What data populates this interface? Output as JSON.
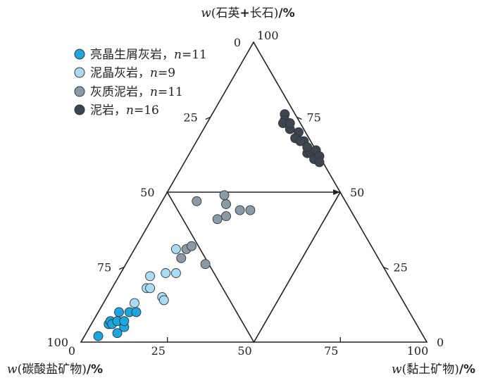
{
  "chart_data": {
    "type": "scatter",
    "plot_kind": "ternary",
    "axes": {
      "top_title": {
        "var": "w",
        "text": "(石英",
        "plus": "+",
        "text2": "长石)",
        "unit": "/%"
      },
      "left_title": {
        "var": "w",
        "text": "(碳酸盐矿物)",
        "unit": "/%"
      },
      "right_title": {
        "var": "w",
        "text": "(黏土矿物)",
        "unit": "/%"
      },
      "bottom_ticks": [
        "0",
        "25",
        "50",
        "75",
        "100"
      ],
      "left_ticks": [
        "0",
        "25",
        "50",
        "75",
        "100"
      ],
      "right_ticks": [
        "100",
        "75",
        "50",
        "25",
        "0"
      ]
    },
    "legend_position": "top-left",
    "series": [
      {
        "name": "亮晶生屑灰岩",
        "n_label": "n",
        "n_value": "=11",
        "color": "#1aa7e0",
        "points": [
          {
            "carbonate": 94,
            "qf": 2,
            "clay": 4
          },
          {
            "carbonate": 89,
            "qf": 6,
            "clay": 5
          },
          {
            "carbonate": 88,
            "qf": 7,
            "clay": 5
          },
          {
            "carbonate": 88,
            "qf": 6,
            "clay": 6
          },
          {
            "carbonate": 88,
            "qf": 3,
            "clay": 9
          },
          {
            "carbonate": 86,
            "qf": 7,
            "clay": 7
          },
          {
            "carbonate": 85,
            "qf": 5,
            "clay": 10
          },
          {
            "carbonate": 84,
            "qf": 10,
            "clay": 6
          },
          {
            "carbonate": 81,
            "qf": 10,
            "clay": 9
          },
          {
            "carbonate": 79,
            "qf": 10,
            "clay": 11
          },
          {
            "carbonate": 84,
            "qf": 7,
            "clay": 9
          }
        ]
      },
      {
        "name": "泥晶灰岩",
        "n_label": "n",
        "n_value": "=9",
        "color": "#a8dcf4",
        "points": [
          {
            "carbonate": 78,
            "qf": 13,
            "clay": 9
          },
          {
            "carbonate": 72,
            "qf": 18,
            "clay": 10
          },
          {
            "carbonate": 71,
            "qf": 18,
            "clay": 11
          },
          {
            "carbonate": 69,
            "qf": 22,
            "clay": 9
          },
          {
            "carbonate": 69,
            "qf": 15,
            "clay": 16
          },
          {
            "carbonate": 69,
            "qf": 14,
            "clay": 17
          },
          {
            "carbonate": 64,
            "qf": 23,
            "clay": 13
          },
          {
            "carbonate": 61,
            "qf": 23,
            "clay": 16
          },
          {
            "carbonate": 57,
            "qf": 31,
            "clay": 12
          }
        ]
      },
      {
        "name": "灰质泥岩",
        "n_label": "n",
        "n_value": "=11",
        "color": "#8b9ba6",
        "points": [
          {
            "carbonate": 57,
            "qf": 28,
            "clay": 15
          },
          {
            "carbonate": 54,
            "qf": 31,
            "clay": 15
          },
          {
            "carbonate": 52,
            "qf": 32,
            "clay": 16
          },
          {
            "carbonate": 51,
            "qf": 26,
            "clay": 23
          },
          {
            "carbonate": 43,
            "qf": 47,
            "clay": 10
          },
          {
            "carbonate": 40,
            "qf": 41,
            "clay": 19
          },
          {
            "carbonate": 37,
            "qf": 42,
            "clay": 21
          },
          {
            "carbonate": 35,
            "qf": 46,
            "clay": 19
          },
          {
            "carbonate": 34,
            "qf": 49,
            "clay": 17
          },
          {
            "carbonate": 32,
            "qf": 44,
            "clay": 24
          },
          {
            "carbonate": 29,
            "qf": 44,
            "clay": 27
          }
        ]
      },
      {
        "name": "泥岩",
        "n_label": "n",
        "n_value": "=16",
        "color": "#3d4650",
        "points": [
          {
            "carbonate": 3,
            "qf": 76,
            "clay": 21
          },
          {
            "carbonate": 4,
            "qf": 74,
            "clay": 22
          },
          {
            "carbonate": 5,
            "qf": 73,
            "clay": 22
          },
          {
            "carbonate": 4,
            "qf": 71,
            "clay": 25
          },
          {
            "carbonate": 2,
            "qf": 70,
            "clay": 28
          },
          {
            "carbonate": 3,
            "qf": 73,
            "clay": 24
          },
          {
            "carbonate": 4,
            "qf": 68,
            "clay": 28
          },
          {
            "carbonate": 2,
            "qf": 67,
            "clay": 31
          },
          {
            "carbonate": 3,
            "qf": 67,
            "clay": 30
          },
          {
            "carbonate": 3,
            "qf": 63,
            "clay": 34
          },
          {
            "carbonate": 2,
            "qf": 63,
            "clay": 35
          },
          {
            "carbonate": 2,
            "qf": 61,
            "clay": 37
          },
          {
            "carbonate": 2,
            "qf": 65,
            "clay": 33
          },
          {
            "carbonate": 0,
            "qf": 64,
            "clay": 36
          },
          {
            "carbonate": 0,
            "qf": 62,
            "clay": 38
          },
          {
            "carbonate": 1,
            "qf": 60,
            "clay": 39
          }
        ]
      }
    ]
  }
}
